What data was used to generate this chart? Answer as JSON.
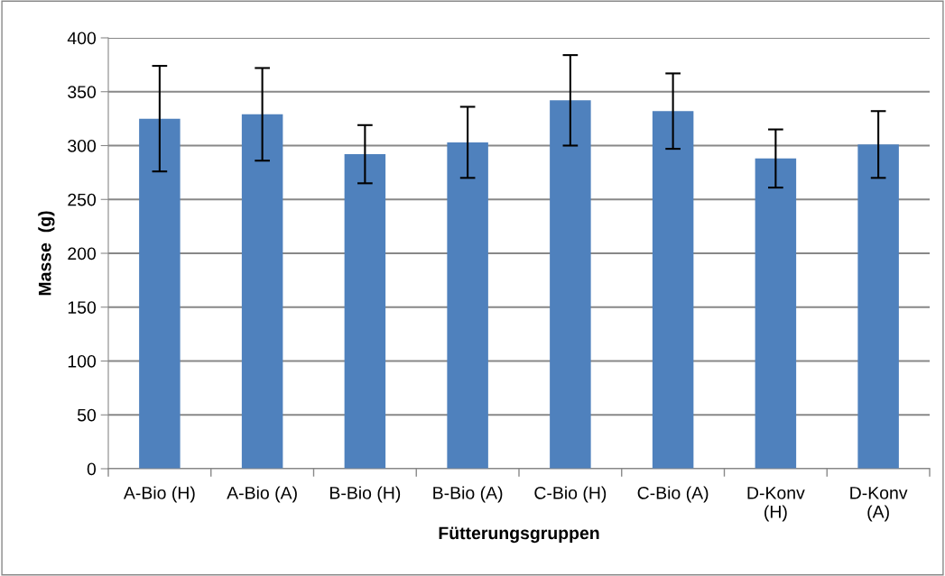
{
  "chart_data": {
    "type": "bar",
    "xlabel": "Fütterungsgruppen",
    "ylabel": "Masse  (g)",
    "categories": [
      "A-Bio (H)",
      "A-Bio (A)",
      "B-Bio (H)",
      "B-Bio (A)",
      "C-Bio (H)",
      "C-Bio (A)",
      "D-Konv (H)",
      "D-Konv (A)"
    ],
    "series": [
      {
        "color": "#4f81bd",
        "values": [
          325,
          329,
          292,
          303,
          342,
          332,
          288,
          301
        ],
        "errors": [
          49,
          43,
          27,
          33,
          42,
          35,
          27,
          31
        ]
      }
    ],
    "ylim": [
      0,
      400
    ],
    "yticks": [
      0,
      50,
      100,
      150,
      200,
      250,
      300,
      350,
      400
    ],
    "grid": "y",
    "legend": false
  }
}
